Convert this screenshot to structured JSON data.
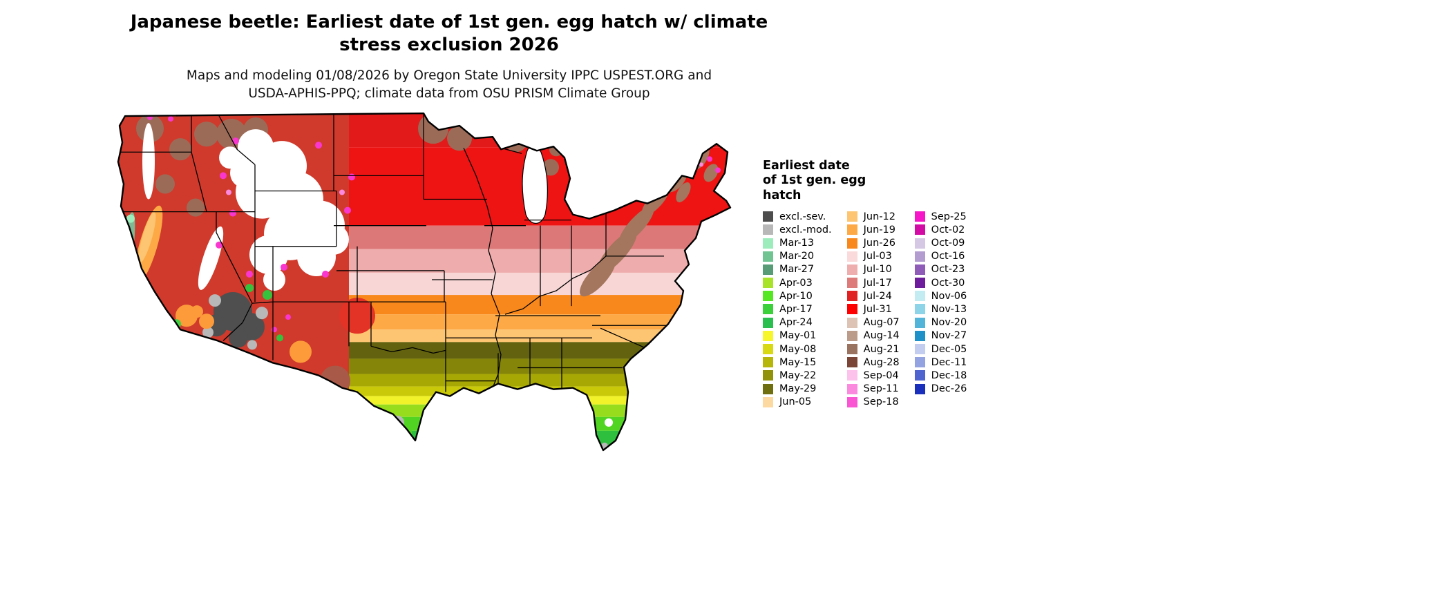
{
  "header": {
    "title_line1": "Japanese beetle: Earliest date of 1st gen. egg hatch w/ climate",
    "title_line2": "stress exclusion 2026",
    "subtitle_line1": "Maps and modeling 01/08/2026 by Oregon State University IPPC USPEST.ORG and",
    "subtitle_line2": "USDA-APHIS-PPQ; climate data from OSU PRISM Climate Group"
  },
  "map": {
    "region": "Contiguous United States",
    "kind": "choropleth raster map with state boundaries"
  },
  "legend": {
    "title_lines": [
      "Earliest date",
      "of 1st gen. egg",
      "hatch"
    ],
    "columns": [
      {
        "items": [
          {
            "label": "excl.-sev.",
            "color": "#4d4d4d"
          },
          {
            "label": "excl.-mod.",
            "color": "#b8b8b8"
          },
          {
            "label": "Mar-13",
            "color": "#9cecbc"
          },
          {
            "label": "Mar-20",
            "color": "#6fc492"
          },
          {
            "label": "Mar-27",
            "color": "#579b77"
          },
          {
            "label": "Apr-03",
            "color": "#a8e32a"
          },
          {
            "label": "Apr-10",
            "color": "#55e822"
          },
          {
            "label": "Apr-17",
            "color": "#3bd13b"
          },
          {
            "label": "Apr-24",
            "color": "#28bf4f"
          },
          {
            "label": "May-01",
            "color": "#f6f62b"
          },
          {
            "label": "May-08",
            "color": "#d8d813"
          },
          {
            "label": "May-15",
            "color": "#b5b50a"
          },
          {
            "label": "May-22",
            "color": "#92920a"
          },
          {
            "label": "May-29",
            "color": "#6f6f10"
          },
          {
            "label": "Jun-05",
            "color": "#fdd9a2"
          }
        ]
      },
      {
        "items": [
          {
            "label": "Jun-12",
            "color": "#fdc571"
          },
          {
            "label": "Jun-19",
            "color": "#fda945"
          },
          {
            "label": "Jun-26",
            "color": "#f9881c"
          },
          {
            "label": "Jul-03",
            "color": "#fadada"
          },
          {
            "label": "Jul-10",
            "color": "#eeaeae"
          },
          {
            "label": "Jul-17",
            "color": "#dd7b7b"
          },
          {
            "label": "Jul-24",
            "color": "#e02222"
          },
          {
            "label": "Jul-31",
            "color": "#ff0000"
          },
          {
            "label": "Aug-07",
            "color": "#dcc3b3"
          },
          {
            "label": "Aug-14",
            "color": "#bb9c8a"
          },
          {
            "label": "Aug-21",
            "color": "#9a7260"
          },
          {
            "label": "Aug-28",
            "color": "#7a4537"
          },
          {
            "label": "Sep-04",
            "color": "#fcc2ec"
          },
          {
            "label": "Sep-11",
            "color": "#fb8ade"
          },
          {
            "label": "Sep-18",
            "color": "#fa55d3"
          }
        ]
      },
      {
        "items": [
          {
            "label": "Sep-25",
            "color": "#f715c9"
          },
          {
            "label": "Oct-02",
            "color": "#d40ca6"
          },
          {
            "label": "Oct-09",
            "color": "#d5c8e4"
          },
          {
            "label": "Oct-16",
            "color": "#b39cd0"
          },
          {
            "label": "Oct-23",
            "color": "#8f5cb8"
          },
          {
            "label": "Oct-30",
            "color": "#6d1d9c"
          },
          {
            "label": "Nov-06",
            "color": "#c2ecf2"
          },
          {
            "label": "Nov-13",
            "color": "#8ed4e8"
          },
          {
            "label": "Nov-20",
            "color": "#53b4da"
          },
          {
            "label": "Nov-27",
            "color": "#1e92c8"
          },
          {
            "label": "Dec-05",
            "color": "#c3cdf0"
          },
          {
            "label": "Dec-11",
            "color": "#93a3e2"
          },
          {
            "label": "Dec-18",
            "color": "#5064cf"
          },
          {
            "label": "Dec-26",
            "color": "#1a2fbc"
          }
        ]
      }
    ]
  }
}
